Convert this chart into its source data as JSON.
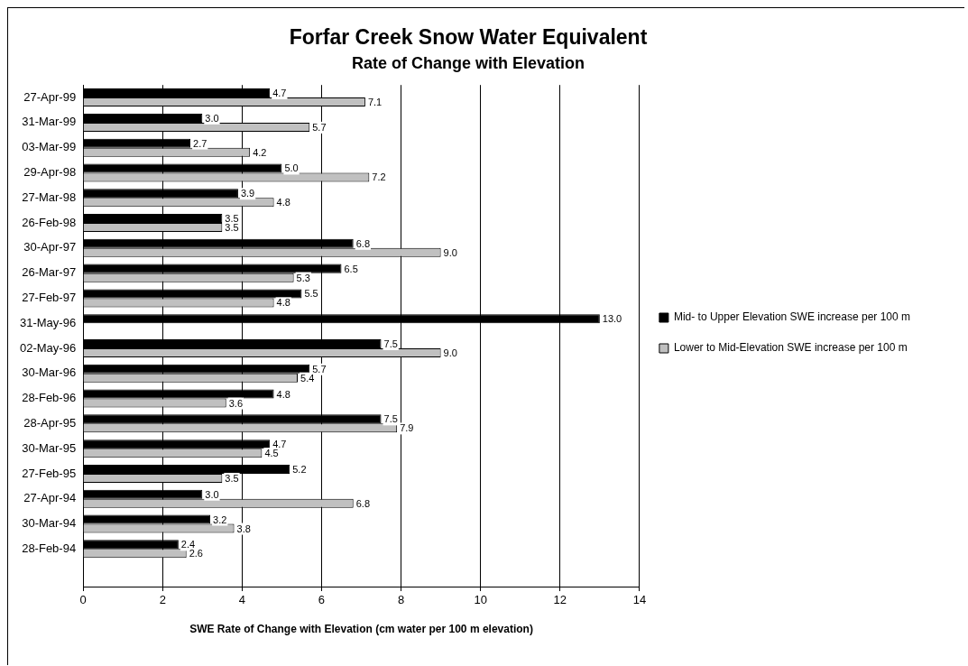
{
  "chart_data": {
    "type": "bar",
    "orientation": "horizontal",
    "title": "Forfar Creek Snow Water Equivalent",
    "subtitle": "Rate of Change with Elevation",
    "xlabel": "SWE Rate of Change with Elevation (cm water per 100 m elevation)",
    "categories": [
      "27-Apr-99",
      "31-Mar-99",
      "03-Mar-99",
      "29-Apr-98",
      "27-Mar-98",
      "26-Feb-98",
      "30-Apr-97",
      "26-Mar-97",
      "27-Feb-97",
      "31-May-96",
      "02-May-96",
      "30-Mar-96",
      "28-Feb-96",
      "28-Apr-95",
      "30-Mar-95",
      "27-Feb-95",
      "27-Apr-94",
      "30-Mar-94",
      "28-Feb-94",
      null
    ],
    "series": [
      {
        "name": "Mid- to Upper Elevation SWE increase per 100 m",
        "color": "#000000",
        "values": [
          4.7,
          3.0,
          2.7,
          5.0,
          3.9,
          3.5,
          6.8,
          6.5,
          5.5,
          13.0,
          7.5,
          5.7,
          4.8,
          7.5,
          4.7,
          5.2,
          3.0,
          3.2,
          2.4,
          null
        ],
        "value_labels": [
          "4.7",
          "3.0",
          "2.7",
          "5.0",
          "3.9",
          "3.5",
          "6.8",
          "6.5",
          "5.5",
          "13.0",
          "7.5",
          "5.7",
          "4.8",
          "7.5",
          "4.7",
          "5.2",
          "3.0",
          "3.2",
          "2.4",
          null
        ]
      },
      {
        "name": "Lower to Mid-Elevation SWE increase per 100 m",
        "color": "#c0c0c0",
        "values": [
          7.1,
          5.7,
          4.2,
          7.2,
          4.8,
          3.5,
          9.0,
          5.3,
          4.8,
          null,
          9.0,
          5.4,
          3.6,
          7.9,
          4.5,
          3.5,
          6.8,
          3.8,
          2.6,
          null
        ],
        "value_labels": [
          "7.1",
          "5.7",
          "4.2",
          "7.2",
          "4.8",
          "3.5",
          "9.0",
          "5.3",
          "4.8",
          null,
          "9.0",
          "5.4",
          "3.6",
          "7.9",
          "4.5",
          "3.5",
          "6.8",
          "3.8",
          "2.6",
          null
        ]
      }
    ],
    "xlim": [
      0,
      14
    ],
    "xticks": [
      0,
      2,
      4,
      6,
      8,
      10,
      12,
      14
    ],
    "grid": "x",
    "legend": "right"
  }
}
